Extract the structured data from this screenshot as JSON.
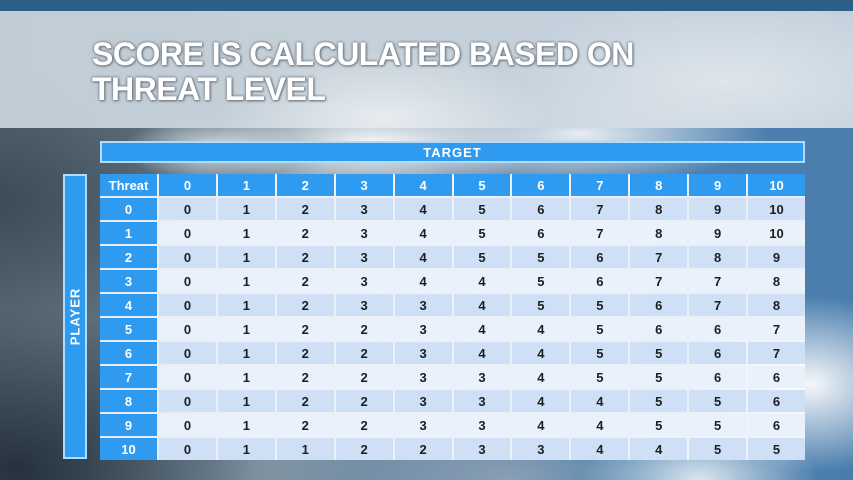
{
  "slide": {
    "title_line1": "SCORE IS CALCULATED BASED ON",
    "title_line2": "THREAT LEVEL"
  },
  "table": {
    "target_label": "TARGET",
    "player_label": "PLAYER",
    "corner_label": "Threat",
    "column_headers": [
      "0",
      "1",
      "2",
      "3",
      "4",
      "5",
      "6",
      "7",
      "8",
      "9",
      "10"
    ],
    "rows": [
      {
        "threat": "0",
        "values": [
          "0",
          "1",
          "2",
          "3",
          "4",
          "5",
          "6",
          "7",
          "8",
          "9",
          "10"
        ]
      },
      {
        "threat": "1",
        "values": [
          "0",
          "1",
          "2",
          "3",
          "4",
          "5",
          "6",
          "7",
          "8",
          "9",
          "10"
        ]
      },
      {
        "threat": "2",
        "values": [
          "0",
          "1",
          "2",
          "3",
          "4",
          "5",
          "5",
          "6",
          "7",
          "8",
          "9"
        ]
      },
      {
        "threat": "3",
        "values": [
          "0",
          "1",
          "2",
          "3",
          "4",
          "4",
          "5",
          "6",
          "7",
          "7",
          "8"
        ]
      },
      {
        "threat": "4",
        "values": [
          "0",
          "1",
          "2",
          "3",
          "3",
          "4",
          "5",
          "5",
          "6",
          "7",
          "8"
        ]
      },
      {
        "threat": "5",
        "values": [
          "0",
          "1",
          "2",
          "2",
          "3",
          "4",
          "4",
          "5",
          "6",
          "6",
          "7"
        ]
      },
      {
        "threat": "6",
        "values": [
          "0",
          "1",
          "2",
          "2",
          "3",
          "4",
          "4",
          "5",
          "5",
          "6",
          "7"
        ]
      },
      {
        "threat": "7",
        "values": [
          "0",
          "1",
          "2",
          "2",
          "3",
          "3",
          "4",
          "5",
          "5",
          "6",
          "6"
        ]
      },
      {
        "threat": "8",
        "values": [
          "0",
          "1",
          "2",
          "2",
          "3",
          "3",
          "4",
          "4",
          "5",
          "5",
          "6"
        ]
      },
      {
        "threat": "9",
        "values": [
          "0",
          "1",
          "2",
          "2",
          "3",
          "3",
          "4",
          "4",
          "5",
          "5",
          "6"
        ]
      },
      {
        "threat": "10",
        "values": [
          "0",
          "1",
          "1",
          "2",
          "2",
          "3",
          "3",
          "4",
          "4",
          "5",
          "5"
        ]
      }
    ]
  },
  "colors": {
    "accent_blue": "#2e9bf1",
    "top_strip_blue": "#2d5e86",
    "banner_gray_blue": "#cdd8e0",
    "row_dark": "#cfdff5",
    "row_light": "#ebf1fb",
    "cell_text": "#1e1e20",
    "header_text": "#ffffff"
  },
  "chart_data": {
    "type": "table",
    "title": "Score is calculated based on threat level",
    "column_group_label": "TARGET",
    "row_group_label": "PLAYER",
    "corner_label": "Threat",
    "columns": [
      0,
      1,
      2,
      3,
      4,
      5,
      6,
      7,
      8,
      9,
      10
    ],
    "rows": [
      {
        "threat": 0,
        "scores": [
          0,
          1,
          2,
          3,
          4,
          5,
          6,
          7,
          8,
          9,
          10
        ]
      },
      {
        "threat": 1,
        "scores": [
          0,
          1,
          2,
          3,
          4,
          5,
          6,
          7,
          8,
          9,
          10
        ]
      },
      {
        "threat": 2,
        "scores": [
          0,
          1,
          2,
          3,
          4,
          5,
          5,
          6,
          7,
          8,
          9
        ]
      },
      {
        "threat": 3,
        "scores": [
          0,
          1,
          2,
          3,
          4,
          4,
          5,
          6,
          7,
          7,
          8
        ]
      },
      {
        "threat": 4,
        "scores": [
          0,
          1,
          2,
          3,
          3,
          4,
          5,
          5,
          6,
          7,
          8
        ]
      },
      {
        "threat": 5,
        "scores": [
          0,
          1,
          2,
          2,
          3,
          4,
          4,
          5,
          6,
          6,
          7
        ]
      },
      {
        "threat": 6,
        "scores": [
          0,
          1,
          2,
          2,
          3,
          4,
          4,
          5,
          5,
          6,
          7
        ]
      },
      {
        "threat": 7,
        "scores": [
          0,
          1,
          2,
          2,
          3,
          3,
          4,
          5,
          5,
          6,
          6
        ]
      },
      {
        "threat": 8,
        "scores": [
          0,
          1,
          2,
          2,
          3,
          3,
          4,
          4,
          5,
          5,
          6
        ]
      },
      {
        "threat": 9,
        "scores": [
          0,
          1,
          2,
          2,
          3,
          3,
          4,
          4,
          5,
          5,
          6
        ]
      },
      {
        "threat": 10,
        "scores": [
          0,
          1,
          1,
          2,
          2,
          3,
          3,
          4,
          4,
          5,
          5
        ]
      }
    ]
  }
}
